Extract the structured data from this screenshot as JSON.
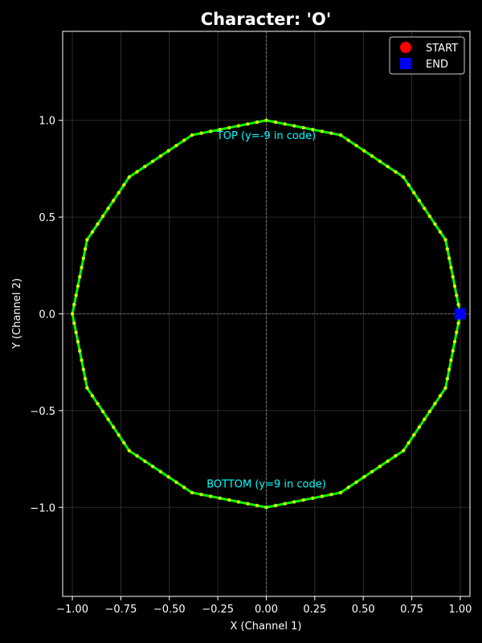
{
  "chart_data": {
    "type": "line",
    "title": "Character: 'O'",
    "xlabel": "X (Channel 1)",
    "ylabel": "Y (Channel 2)",
    "xlim": [
      -1.05,
      1.05
    ],
    "ylim": [
      -1.46,
      1.46
    ],
    "xticks": [
      -1.0,
      -0.75,
      -0.5,
      -0.25,
      0.0,
      0.25,
      0.5,
      0.75,
      1.0
    ],
    "xtick_labels": [
      "−1.00",
      "−0.75",
      "−0.50",
      "−0.25",
      "0.00",
      "0.25",
      "0.50",
      "0.75",
      "1.00"
    ],
    "yticks": [
      -1.0,
      -0.5,
      0.0,
      0.5,
      1.0
    ],
    "ytick_labels": [
      "−1.0",
      "−0.5",
      "0.0",
      "0.5",
      "1.0"
    ],
    "grid": true,
    "legend_position": "top-right",
    "vertices": [
      [
        1.0,
        0.0
      ],
      [
        0.924,
        0.383
      ],
      [
        0.707,
        0.707
      ],
      [
        0.383,
        0.924
      ],
      [
        0.0,
        1.0
      ],
      [
        -0.383,
        0.924
      ],
      [
        -0.707,
        0.707
      ],
      [
        -0.924,
        0.383
      ],
      [
        -1.0,
        0.0
      ],
      [
        -0.924,
        -0.383
      ],
      [
        -0.707,
        -0.707
      ],
      [
        -0.383,
        -0.924
      ],
      [
        0.0,
        -1.0
      ],
      [
        0.383,
        -0.924
      ],
      [
        0.707,
        -0.707
      ],
      [
        0.924,
        -0.383
      ],
      [
        1.0,
        0.0
      ]
    ],
    "points_per_segment": 8,
    "line_color": "#00ff00",
    "point_color": "#ccff00",
    "start": {
      "label": "START",
      "x": 1.0,
      "y": 0.0,
      "color": "#ff0000",
      "marker": "circle"
    },
    "end": {
      "label": "END",
      "x": 1.0,
      "y": 0.0,
      "color": "#0000ff",
      "marker": "square"
    },
    "annotations": [
      {
        "text": "TOP (y=-9 in code)",
        "x": 0.0,
        "y": 0.92,
        "color": "#00ffff"
      },
      {
        "text": "BOTTOM (y=9 in code)",
        "x": 0.0,
        "y": -0.88,
        "color": "#00ffff"
      }
    ],
    "background": "#000000",
    "foreground": "#ffffff",
    "grid_color": "#444444",
    "crosshair_color": "#aaaaaa"
  }
}
